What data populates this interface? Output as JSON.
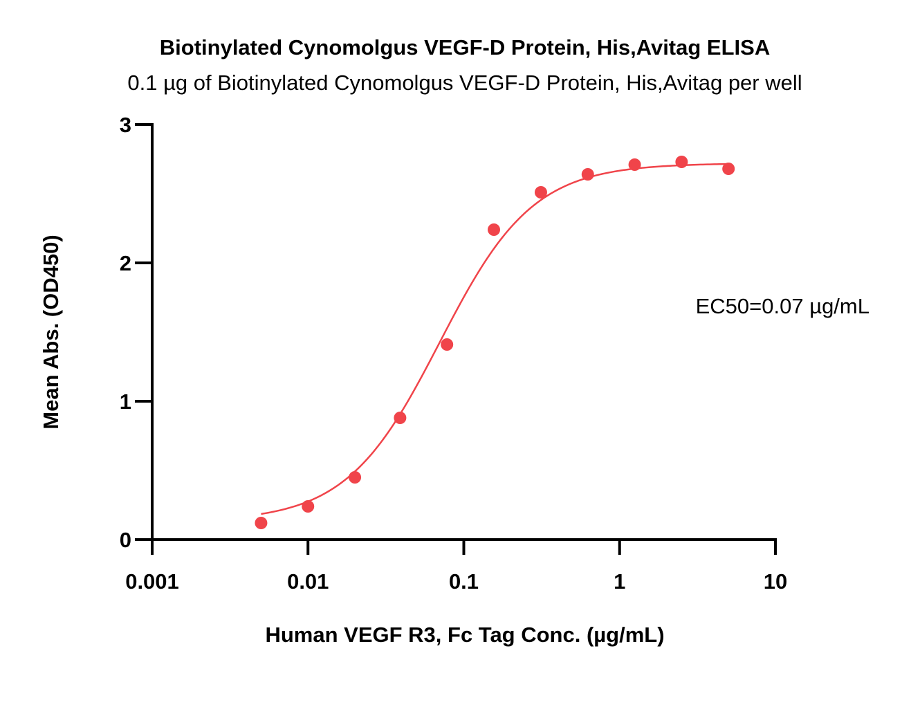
{
  "chart_data": {
    "type": "scatter",
    "title": "Biotinylated Cynomolgus VEGF-D Protein, His,Avitag ELISA",
    "subtitle": "0.1 µg of Biotinylated Cynomolgus VEGF-D Protein, His,Avitag per well",
    "xlabel": "Human VEGF R3, Fc Tag Conc. (µg/mL)",
    "ylabel": "Mean Abs. (OD450)",
    "x_scale": "log",
    "xlim": [
      0.001,
      10
    ],
    "ylim": [
      0,
      3
    ],
    "x_ticks": [
      "0.001",
      "0.01",
      "0.1",
      "1",
      "10"
    ],
    "x_tick_values": [
      0.001,
      0.01,
      0.1,
      1,
      10
    ],
    "y_ticks": [
      "0",
      "1",
      "2",
      "3"
    ],
    "y_tick_values": [
      0,
      1,
      2,
      3
    ],
    "grid": false,
    "annotation": "EC50=0.07 µg/mL",
    "color": "#f0444a",
    "series": [
      {
        "x": [
          0.005,
          0.01,
          0.02,
          0.039,
          0.078,
          0.156,
          0.3125,
          0.625,
          1.25,
          2.5,
          5
        ],
        "y": [
          0.12,
          0.24,
          0.45,
          0.88,
          1.41,
          2.24,
          2.51,
          2.64,
          2.71,
          2.73,
          2.68
        ]
      }
    ],
    "fit": {
      "model": "4PL",
      "bottom": 0.13,
      "top": 2.72,
      "ec50": 0.07,
      "hill": 1.45,
      "x_range": [
        0.005,
        5
      ]
    }
  }
}
